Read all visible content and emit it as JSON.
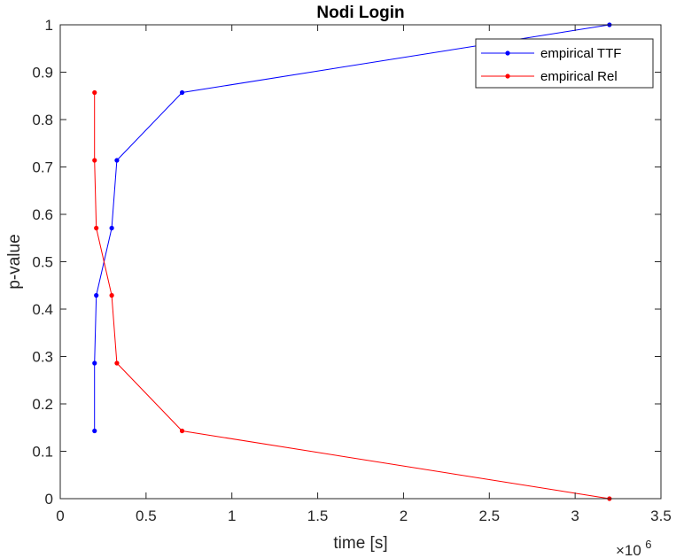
{
  "chart_data": {
    "type": "line",
    "title": "Nodi Login",
    "xlabel": "time [s]",
    "ylabel": "p-value",
    "x_exponent_base": "×10",
    "x_exponent_power": "6",
    "xlim": [
      0,
      3.5
    ],
    "ylim": [
      0,
      1
    ],
    "x_ticks": [
      0,
      0.5,
      1,
      1.5,
      2,
      2.5,
      3,
      3.5
    ],
    "x_tick_labels": [
      "0",
      "0.5",
      "1",
      "1.5",
      "2",
      "2.5",
      "3",
      "3.5"
    ],
    "y_ticks": [
      0,
      0.1,
      0.2,
      0.3,
      0.4,
      0.5,
      0.6,
      0.7,
      0.8,
      0.9,
      1
    ],
    "y_tick_labels": [
      "0",
      "0.1",
      "0.2",
      "0.3",
      "0.4",
      "0.5",
      "0.6",
      "0.7",
      "0.8",
      "0.9",
      "1"
    ],
    "grid": false,
    "legend_position": "top-right",
    "series": [
      {
        "name": "empirical TTF",
        "color": "#0000ff",
        "x": [
          0.2,
          0.2,
          0.21,
          0.3,
          0.33,
          0.71,
          3.2
        ],
        "y": [
          0.143,
          0.286,
          0.429,
          0.571,
          0.714,
          0.857,
          1.0
        ]
      },
      {
        "name": "empirical Rel",
        "color": "#ff0000",
        "x": [
          0.2,
          0.2,
          0.21,
          0.3,
          0.33,
          0.71,
          3.2
        ],
        "y": [
          0.857,
          0.714,
          0.571,
          0.429,
          0.286,
          0.143,
          0.0
        ]
      }
    ]
  }
}
